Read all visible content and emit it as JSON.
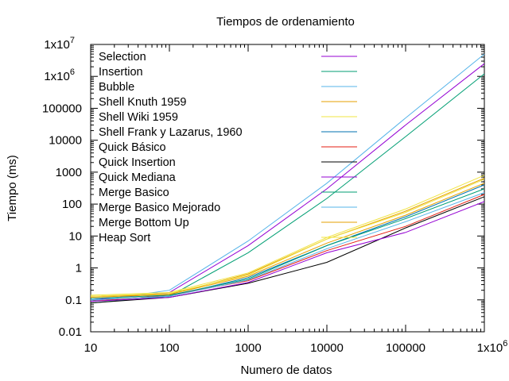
{
  "chart_data": {
    "type": "line",
    "title": "Tiempos de ordenamiento",
    "xlabel": "Numero de datos",
    "ylabel": "Tiempo (ms)",
    "xscale": "log",
    "yscale": "log",
    "xlim": [
      10,
      1000000
    ],
    "ylim": [
      0.01,
      10000000
    ],
    "grid": false,
    "legend_position": "top-left",
    "x_ticks": [
      {
        "value": 10,
        "label": "10"
      },
      {
        "value": 100,
        "label": "100"
      },
      {
        "value": 1000,
        "label": "1000"
      },
      {
        "value": 10000,
        "label": "10000"
      },
      {
        "value": 100000,
        "label": "100000"
      },
      {
        "value": 1000000,
        "label": "1x10",
        "exp": "6"
      }
    ],
    "y_ticks": [
      {
        "value": 0.01,
        "label": "0.01"
      },
      {
        "value": 0.1,
        "label": "0.1"
      },
      {
        "value": 1,
        "label": "1"
      },
      {
        "value": 10,
        "label": "10"
      },
      {
        "value": 100,
        "label": "100"
      },
      {
        "value": 1000,
        "label": "1000"
      },
      {
        "value": 10000,
        "label": "10000"
      },
      {
        "value": 100000,
        "label": "100000"
      },
      {
        "value": 1000000,
        "label": "1x10",
        "exp": "6"
      },
      {
        "value": 10000000,
        "label": "1x10",
        "exp": "7"
      }
    ],
    "x": [
      10,
      100,
      1000,
      10000,
      100000,
      1000000
    ],
    "series": [
      {
        "name": "Selection",
        "color": "#9400d3",
        "values": [
          0.1,
          0.17,
          5,
          300,
          30000,
          2500000
        ]
      },
      {
        "name": "Insertion",
        "color": "#009e73",
        "values": [
          0.08,
          0.13,
          3,
          150,
          13000,
          1200000
        ]
      },
      {
        "name": "Bubble",
        "color": "#56b4e9",
        "values": [
          0.09,
          0.2,
          7,
          450,
          50000,
          5000000
        ]
      },
      {
        "name": "Shell Knuth 1959",
        "color": "#e69f00",
        "values": [
          0.13,
          0.15,
          0.65,
          8,
          60,
          650
        ]
      },
      {
        "name": "Shell Wiki 1959",
        "color": "#f0e442",
        "values": [
          0.14,
          0.17,
          0.7,
          9,
          70,
          800
        ]
      },
      {
        "name": "Shell Frank y Lazarus, 1960",
        "color": "#0072b2",
        "values": [
          0.1,
          0.13,
          0.5,
          5,
          40,
          400
        ]
      },
      {
        "name": "Quick Básico",
        "color": "#e51e10",
        "values": [
          0.09,
          0.14,
          0.4,
          3.5,
          20,
          200
        ]
      },
      {
        "name": "Quick Insertion",
        "color": "#000000",
        "values": [
          0.08,
          0.12,
          0.33,
          1.5,
          18,
          170
        ]
      },
      {
        "name": "Quick  Mediana",
        "color": "#9400d3",
        "values": [
          0.09,
          0.12,
          0.35,
          3,
          13,
          120
        ]
      },
      {
        "name": "Merge Basico",
        "color": "#009e73",
        "values": [
          0.11,
          0.14,
          0.45,
          5,
          35,
          300
        ]
      },
      {
        "name": "Merge Basico Mejorado",
        "color": "#56b4e9",
        "values": [
          0.1,
          0.13,
          0.42,
          4,
          28,
          230
        ]
      },
      {
        "name": "Merge Bottom Up",
        "color": "#e69f00",
        "values": [
          0.12,
          0.15,
          0.55,
          6,
          45,
          450
        ]
      },
      {
        "name": "Heap Sort",
        "color": "#f0e442",
        "values": [
          0.13,
          0.16,
          0.6,
          8,
          55,
          600
        ]
      }
    ]
  }
}
